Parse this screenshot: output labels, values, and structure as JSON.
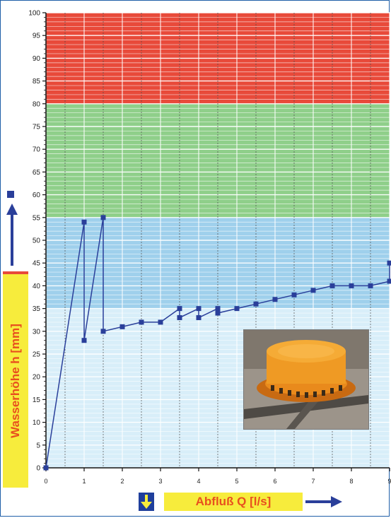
{
  "chart_data": {
    "type": "line",
    "title": "",
    "ylabel": "Wasserhöhe h [mm]",
    "xlabel": "Abfluß Q [l/s]",
    "xlim": [
      0,
      9
    ],
    "ylim": [
      0,
      100
    ],
    "x_ticks": [
      "0",
      "1",
      "2",
      "3",
      "4",
      "5",
      "6",
      "7",
      "8",
      "9"
    ],
    "y_ticks": [
      "0",
      "5",
      "10",
      "15",
      "20",
      "25",
      "30",
      "35",
      "40",
      "45",
      "50",
      "55",
      "60",
      "65",
      "70",
      "75",
      "80",
      "85",
      "90",
      "95",
      "100"
    ],
    "bands": [
      {
        "from": 80,
        "to": 100,
        "color": "#e84a3a"
      },
      {
        "from": 55,
        "to": 80,
        "color": "#8fcf8a"
      },
      {
        "from": 35,
        "to": 55,
        "color": "#9fd0ec"
      },
      {
        "from": 0,
        "to": 35,
        "color": "#d8eef9"
      }
    ],
    "series": [
      {
        "color": "#2a3f9a",
        "points": [
          [
            0,
            0
          ],
          [
            1,
            54
          ],
          [
            1,
            28
          ],
          [
            1.5,
            55
          ],
          [
            1.5,
            30
          ],
          [
            2,
            31
          ],
          [
            2.5,
            32
          ],
          [
            3,
            32
          ],
          [
            3.5,
            35
          ],
          [
            3.5,
            33
          ],
          [
            4,
            35
          ],
          [
            4,
            33
          ],
          [
            4.5,
            35
          ],
          [
            4.5,
            34
          ],
          [
            5,
            35
          ],
          [
            5.5,
            36
          ],
          [
            6,
            37
          ],
          [
            6.5,
            38
          ],
          [
            7,
            39
          ],
          [
            7.5,
            40
          ],
          [
            8,
            40
          ],
          [
            8.5,
            40
          ],
          [
            9,
            41
          ],
          [
            9,
            45
          ]
        ]
      }
    ]
  },
  "photo": {
    "subject": "orange-drain-insert-photo"
  },
  "colors": {
    "accent_yellow": "#f7ec3c",
    "label_orange": "#e8501e",
    "arrow_blue": "#2a3f9a"
  }
}
